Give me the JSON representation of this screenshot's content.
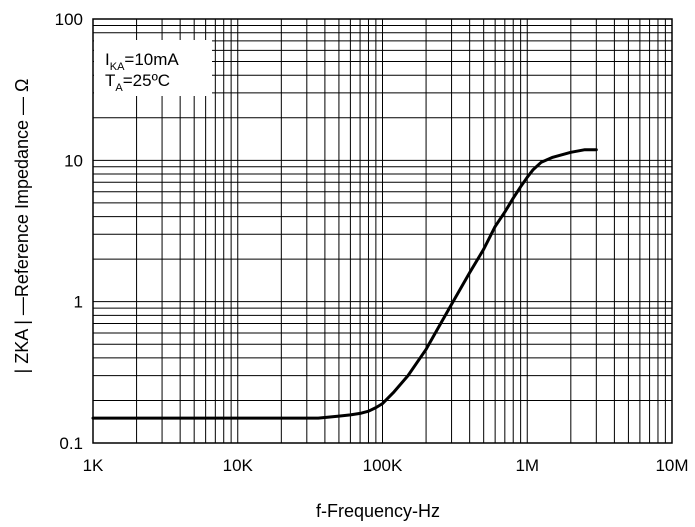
{
  "chart_data": {
    "type": "line",
    "xscale": "log",
    "yscale": "log",
    "xlim": [
      1000,
      10000000
    ],
    "ylim": [
      0.1,
      100
    ],
    "grid": true,
    "xlabel": "f-Frequency-Hz",
    "ylabel": "| ZKA | —Reference Impedance — Ω",
    "x_tick_values": [
      1000,
      10000,
      100000,
      1000000,
      10000000
    ],
    "x_tick_labels": [
      "1K",
      "10K",
      "100K",
      "1M",
      "10M"
    ],
    "y_tick_values": [
      0.1,
      1,
      10,
      100
    ],
    "y_tick_labels": [
      "0.1",
      "1",
      "10",
      "100"
    ],
    "annotation": {
      "line1_main": "I",
      "line1_sub": "KA",
      "line1_rest": "=10mA",
      "line2_main": "T",
      "line2_sub": "A",
      "line2_rest": "=25ºC"
    },
    "series": [
      {
        "color": "#000000",
        "x": [
          1000,
          3000,
          10000,
          20000,
          36000,
          50000,
          60000,
          70000,
          80000,
          90000,
          100000,
          120000,
          150000,
          200000,
          300000,
          400000,
          500000,
          600000,
          700000,
          800000,
          900000,
          1000000,
          1100000,
          1250000,
          1500000,
          2000000,
          2500000,
          3000000
        ],
        "y": [
          0.15,
          0.15,
          0.15,
          0.15,
          0.15,
          0.155,
          0.158,
          0.162,
          0.168,
          0.178,
          0.19,
          0.23,
          0.3,
          0.46,
          0.96,
          1.6,
          2.35,
          3.4,
          4.3,
          5.4,
          6.5,
          7.6,
          8.6,
          9.7,
          10.5,
          11.4,
          11.9,
          11.9
        ]
      }
    ]
  }
}
